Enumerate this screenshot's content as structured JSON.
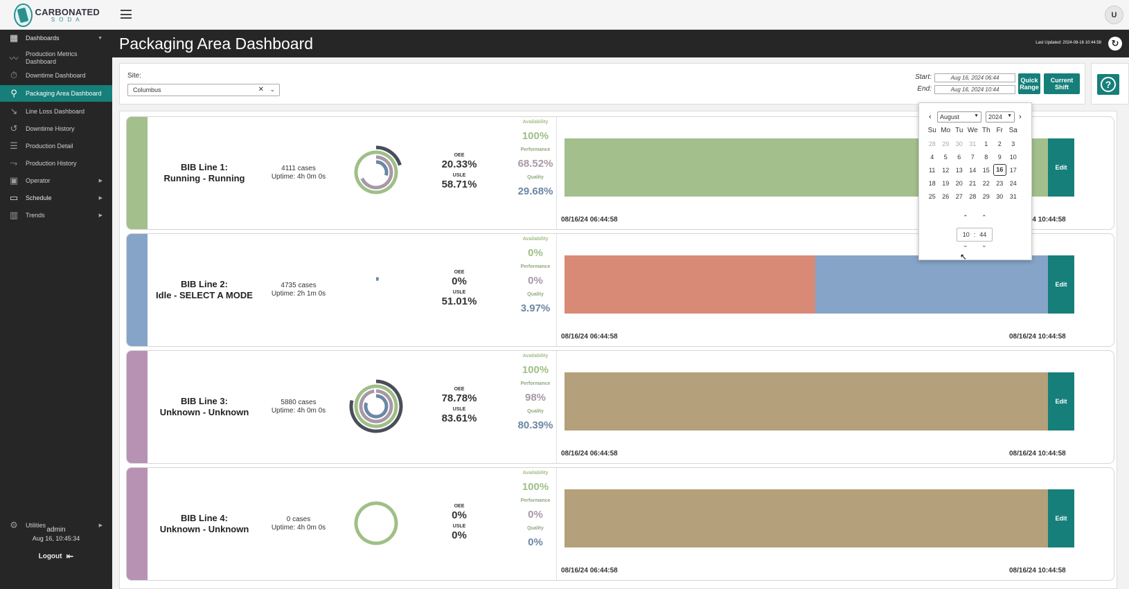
{
  "app": {
    "logo_main": "CARBONATED",
    "logo_sub": "SODA",
    "user_initial": "U"
  },
  "sidebar": {
    "items": [
      {
        "label": "Dashboards",
        "icon": "dashboard-grid-icon"
      },
      {
        "label": "Production Metrics Dashboard",
        "icon": "trend-line-icon"
      },
      {
        "label": "Downtime Dashboard",
        "icon": "stopwatch-icon"
      },
      {
        "label": "Packaging Area Dashboard",
        "icon": "map-pin-icon"
      },
      {
        "label": "Line Loss Dashboard",
        "icon": "trend-down-icon"
      },
      {
        "label": "Downtime History",
        "icon": "history-icon"
      },
      {
        "label": "Production Detail",
        "icon": "detail-list-icon"
      },
      {
        "label": "Production History",
        "icon": "trend-history-icon"
      },
      {
        "label": "Operator",
        "icon": "operator-badge-icon"
      },
      {
        "label": "Schedule",
        "icon": "calendar-icon"
      },
      {
        "label": "Trends",
        "icon": "bar-chart-icon"
      }
    ],
    "utilities_label": "Utilities",
    "username": "admin",
    "session_time": "Aug 16, 10:45:34",
    "logout_label": "Logout"
  },
  "header": {
    "title": "Packaging Area Dashboard",
    "last_updated": "Last Updated: 2024-08-16 10:44:58"
  },
  "filters": {
    "site_label": "Site:",
    "site_value": "Columbus",
    "start_label": "Start:",
    "start_value": "Aug 16, 2024 06:44",
    "end_label": "End:",
    "end_value": "Aug 16, 2024 10:44",
    "quick_range_label": "Quick Range",
    "current_shift_label": "Current Shift"
  },
  "datepicker": {
    "month": "August",
    "year": "2024",
    "weekdays": [
      "Su",
      "Mo",
      "Tu",
      "We",
      "Th",
      "Fr",
      "Sa"
    ],
    "weeks": [
      [
        "28",
        "29",
        "30",
        "31",
        "1",
        "2",
        "3"
      ],
      [
        "4",
        "5",
        "6",
        "7",
        "8",
        "9",
        "10"
      ],
      [
        "11",
        "12",
        "13",
        "14",
        "15",
        "16",
        "17"
      ],
      [
        "18",
        "19",
        "20",
        "21",
        "22",
        "23",
        "24"
      ],
      [
        "25",
        "26",
        "27",
        "28",
        "29",
        "30",
        "31"
      ]
    ],
    "selected_day": "16",
    "hour": "10",
    "minute": "44"
  },
  "labels": {
    "oee": "OEE",
    "usle": "USLE",
    "availability": "Availability",
    "performance": "Performance",
    "quality": "Quality",
    "edit": "Edit"
  },
  "colors": {
    "teal": "#167f7a",
    "running": "#a3bf8c",
    "idle": "#86a4c8",
    "down": "#d98a76",
    "unknown": "#b4a07a",
    "availability": "#9fbf87",
    "performance": "#a898a6",
    "quality": "#6b87a5"
  },
  "lines": [
    {
      "name": "BIB Line 1:",
      "status": "Running - Running",
      "cases": "4111 cases",
      "uptime": "Uptime: 4h 0m 0s",
      "oee": "20.33%",
      "usle": "58.71%",
      "availability": "100%",
      "performance": "68.52%",
      "quality": "29.68%",
      "ring_values": {
        "oee": 0.2033,
        "availability": 1.0,
        "performance": 0.6852,
        "quality": 0.2968
      },
      "stripe_color": "#a3bf8c",
      "timeline": [
        {
          "state": "running",
          "fraction": 1.0
        }
      ],
      "start_time": "08/16/24 06:44:58",
      "end_time": "08/16/24 10:44:58"
    },
    {
      "name": "BIB Line 2:",
      "status": "Idle - SELECT A MODE",
      "cases": "4735 cases",
      "uptime": "Uptime: 2h 1m 0s",
      "oee": "0%",
      "usle": "51.01%",
      "availability": "0%",
      "performance": "0%",
      "quality": "3.97%",
      "ring_values": {
        "oee": 0.0,
        "availability": 0.0,
        "performance": 0.0,
        "quality": 0.0397
      },
      "stripe_color": "#86a4c8",
      "timeline": [
        {
          "state": "down",
          "fraction": 0.5
        },
        {
          "state": "idle",
          "fraction": 0.5
        }
      ],
      "start_time": "08/16/24 06:44:58",
      "end_time": "08/16/24 10:44:58"
    },
    {
      "name": "BIB Line 3:",
      "status": "Unknown - Unknown",
      "cases": "5880 cases",
      "uptime": "Uptime: 4h 0m 0s",
      "oee": "78.78%",
      "usle": "83.61%",
      "availability": "100%",
      "performance": "98%",
      "quality": "80.39%",
      "ring_values": {
        "oee": 0.7878,
        "availability": 1.0,
        "performance": 0.98,
        "quality": 0.8039
      },
      "stripe_color": "#b792b3",
      "timeline": [
        {
          "state": "unknown",
          "fraction": 1.0
        }
      ],
      "start_time": "08/16/24 06:44:58",
      "end_time": "08/16/24 10:44:58"
    },
    {
      "name": "BIB Line 4:",
      "status": "Unknown - Unknown",
      "cases": "0 cases",
      "uptime": "Uptime: 4h 0m 0s",
      "oee": "0%",
      "usle": "0%",
      "availability": "100%",
      "performance": "0%",
      "quality": "0%",
      "ring_values": {
        "oee": 0.0,
        "availability": 1.0,
        "performance": 0.0,
        "quality": 0.0
      },
      "stripe_color": "#b792b3",
      "timeline": [
        {
          "state": "unknown",
          "fraction": 1.0
        }
      ],
      "start_time": "08/16/24 06:44:58",
      "end_time": "08/16/24 10:44:58"
    }
  ]
}
